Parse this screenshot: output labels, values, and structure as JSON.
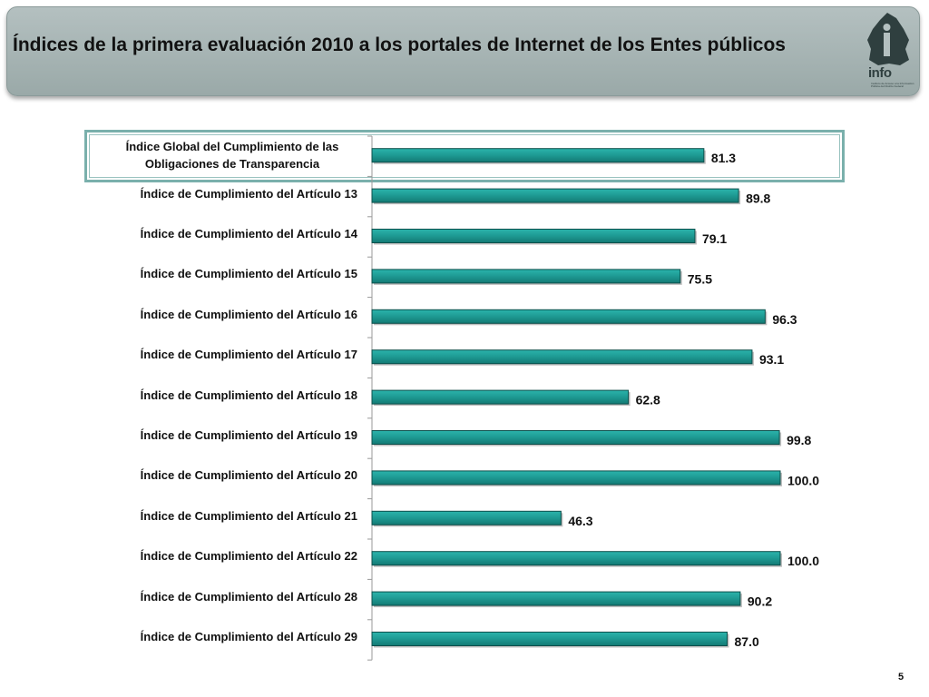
{
  "header": {
    "title": "Índices de la primera evaluación 2010 a los portales de Internet de los Entes públicos",
    "logo_word": "info",
    "logo_sub": "Instituto de Acceso a la Información Pública del Distrito Federal"
  },
  "chart_data": {
    "type": "bar",
    "orientation": "horizontal",
    "categories": [
      "Índice Global del Cumplimiento de las Obligaciones de Transparencia",
      "Índice de Cumplimiento del Artículo 13",
      "Índice de Cumplimiento del Artículo 14",
      "Índice de Cumplimiento del Artículo 15",
      "Índice de Cumplimiento del Artículo 16",
      "Índice de Cumplimiento del Artículo 17",
      "Índice de Cumplimiento del Artículo 18",
      "Índice de Cumplimiento del Artículo 19",
      "Índice de Cumplimiento del Artículo 20",
      "Índice de Cumplimiento del Artículo 21",
      "Índice de Cumplimiento del Artículo 22",
      "Índice de Cumplimiento del Artículo 28",
      "Índice de Cumplimiento del Artículo 29"
    ],
    "values": [
      81.3,
      89.8,
      79.1,
      75.5,
      96.3,
      93.1,
      62.8,
      99.8,
      100.0,
      46.3,
      100.0,
      90.2,
      87.0
    ],
    "value_labels": [
      "81.3",
      "89.8",
      "79.1",
      "75.5",
      "96.3",
      "93.1",
      "62.8",
      "99.8",
      "100.0",
      "46.3",
      "100.0",
      "90.2",
      "87.0"
    ],
    "xlim": [
      0,
      100
    ],
    "grid": false,
    "highlighted_category": 0,
    "colors": {
      "bar": "#1f9c95",
      "bar_edge": "#0c4f4b",
      "axis": "#999999"
    }
  },
  "footer": {
    "page_number": "5"
  }
}
